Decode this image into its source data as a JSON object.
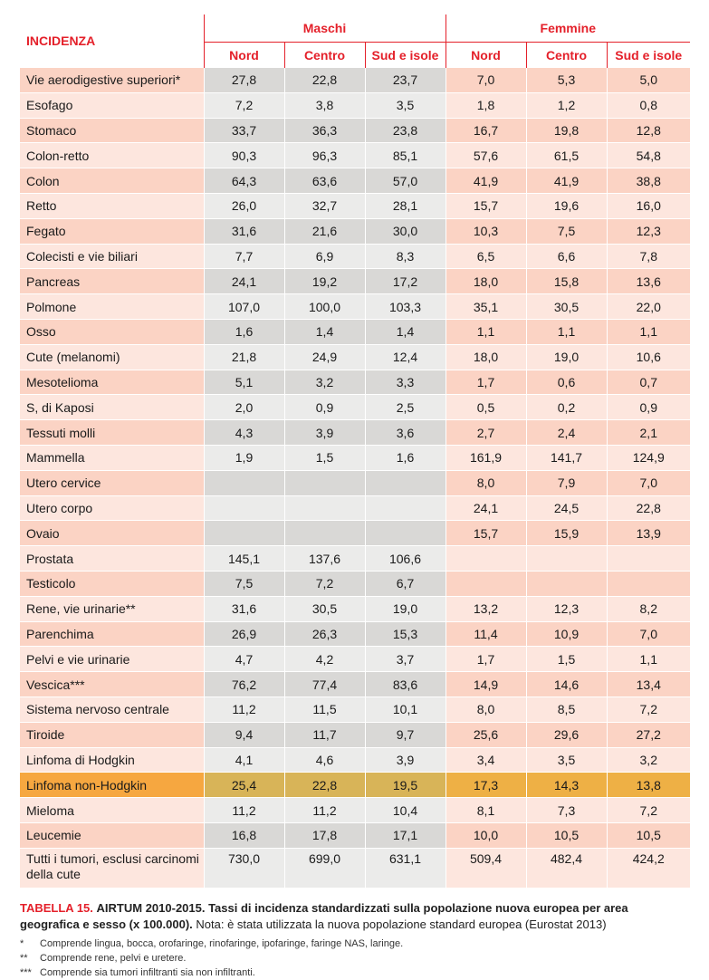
{
  "table": {
    "title": "INCIDENZA",
    "groups": [
      "Maschi",
      "Femmine"
    ],
    "subheaders": [
      "Nord",
      "Centro",
      "Sud e isole",
      "Nord",
      "Centro",
      "Sud e isole"
    ],
    "rows": [
      {
        "label": "Vie aerodigestive superiori*",
        "values": [
          "27,8",
          "22,8",
          "23,7",
          "7,0",
          "5,3",
          "5,0"
        ]
      },
      {
        "label": "Esofago",
        "values": [
          "7,2",
          "3,8",
          "3,5",
          "1,8",
          "1,2",
          "0,8"
        ]
      },
      {
        "label": "Stomaco",
        "values": [
          "33,7",
          "36,3",
          "23,8",
          "16,7",
          "19,8",
          "12,8"
        ]
      },
      {
        "label": "Colon-retto",
        "values": [
          "90,3",
          "96,3",
          "85,1",
          "57,6",
          "61,5",
          "54,8"
        ]
      },
      {
        "label": "Colon",
        "values": [
          "64,3",
          "63,6",
          "57,0",
          "41,9",
          "41,9",
          "38,8"
        ]
      },
      {
        "label": "Retto",
        "values": [
          "26,0",
          "32,7",
          "28,1",
          "15,7",
          "19,6",
          "16,0"
        ]
      },
      {
        "label": "Fegato",
        "values": [
          "31,6",
          "21,6",
          "30,0",
          "10,3",
          "7,5",
          "12,3"
        ]
      },
      {
        "label": "Colecisti e vie biliari",
        "values": [
          "7,7",
          "6,9",
          "8,3",
          "6,5",
          "6,6",
          "7,8"
        ]
      },
      {
        "label": "Pancreas",
        "values": [
          "24,1",
          "19,2",
          "17,2",
          "18,0",
          "15,8",
          "13,6"
        ]
      },
      {
        "label": "Polmone",
        "values": [
          "107,0",
          "100,0",
          "103,3",
          "35,1",
          "30,5",
          "22,0"
        ]
      },
      {
        "label": "Osso",
        "values": [
          "1,6",
          "1,4",
          "1,4",
          "1,1",
          "1,1",
          "1,1"
        ]
      },
      {
        "label": "Cute (melanomi)",
        "values": [
          "21,8",
          "24,9",
          "12,4",
          "18,0",
          "19,0",
          "10,6"
        ]
      },
      {
        "label": "Mesotelioma",
        "values": [
          "5,1",
          "3,2",
          "3,3",
          "1,7",
          "0,6",
          "0,7"
        ]
      },
      {
        "label": "S, di Kaposi",
        "values": [
          "2,0",
          "0,9",
          "2,5",
          "0,5",
          "0,2",
          "0,9"
        ]
      },
      {
        "label": "Tessuti molli",
        "values": [
          "4,3",
          "3,9",
          "3,6",
          "2,7",
          "2,4",
          "2,1"
        ]
      },
      {
        "label": "Mammella",
        "values": [
          "1,9",
          "1,5",
          "1,6",
          "161,9",
          "141,7",
          "124,9"
        ]
      },
      {
        "label": "Utero cervice",
        "values": [
          "",
          "",
          "",
          "8,0",
          "7,9",
          "7,0"
        ]
      },
      {
        "label": "Utero corpo",
        "values": [
          "",
          "",
          "",
          "24,1",
          "24,5",
          "22,8"
        ]
      },
      {
        "label": "Ovaio",
        "values": [
          "",
          "",
          "",
          "15,7",
          "15,9",
          "13,9"
        ]
      },
      {
        "label": "Prostata",
        "values": [
          "145,1",
          "137,6",
          "106,6",
          "",
          "",
          ""
        ]
      },
      {
        "label": "Testicolo",
        "values": [
          "7,5",
          "7,2",
          "6,7",
          "",
          "",
          ""
        ]
      },
      {
        "label": "Rene, vie urinarie**",
        "values": [
          "31,6",
          "30,5",
          "19,0",
          "13,2",
          "12,3",
          "8,2"
        ]
      },
      {
        "label": "Parenchima",
        "values": [
          "26,9",
          "26,3",
          "15,3",
          "11,4",
          "10,9",
          "7,0"
        ]
      },
      {
        "label": "Pelvi e vie urinarie",
        "values": [
          "4,7",
          "4,2",
          "3,7",
          "1,7",
          "1,5",
          "1,1"
        ]
      },
      {
        "label": "Vescica***",
        "values": [
          "76,2",
          "77,4",
          "83,6",
          "14,9",
          "14,6",
          "13,4"
        ]
      },
      {
        "label": "Sistema nervoso centrale",
        "values": [
          "11,2",
          "11,5",
          "10,1",
          "8,0",
          "8,5",
          "7,2"
        ]
      },
      {
        "label": "Tiroide",
        "values": [
          "9,4",
          "11,7",
          "9,7",
          "25,6",
          "29,6",
          "27,2"
        ]
      },
      {
        "label": "Linfoma di Hodgkin",
        "values": [
          "4,1",
          "4,6",
          "3,9",
          "3,4",
          "3,5",
          "3,2"
        ]
      },
      {
        "label": "Linfoma non-Hodgkin",
        "values": [
          "25,4",
          "22,8",
          "19,5",
          "17,3",
          "14,3",
          "13,8"
        ],
        "highlighted": true
      },
      {
        "label": "Mieloma",
        "values": [
          "11,2",
          "11,2",
          "10,4",
          "8,1",
          "7,3",
          "7,2"
        ]
      },
      {
        "label": "Leucemie",
        "values": [
          "16,8",
          "17,8",
          "17,1",
          "10,0",
          "10,5",
          "10,5"
        ]
      },
      {
        "label": "Tutti i tumori, esclusi carcinomi della cute",
        "values": [
          "730,0",
          "699,0",
          "631,1",
          "509,4",
          "482,4",
          "424,2"
        ]
      }
    ]
  },
  "caption": {
    "number": "TABELLA 15.",
    "bold": "AIRTUM 2010-2015. Tassi di incidenza standardizzati sulla popolazione nuova europea per area geografica e sesso (x 100.000).",
    "note": "Nota: è stata utilizzata la nuova popolazione standard europea (Eurostat 2013)"
  },
  "footnotes": [
    {
      "marker": "*",
      "text": "Comprende lingua, bocca, orofaringe, rinofaringe, ipofaringe, faringe NAS, laringe."
    },
    {
      "marker": "**",
      "text": "Comprende rene, pelvi e uretere."
    },
    {
      "marker": "***",
      "text": "Comprende sia tumori infiltranti sia non infiltranti."
    }
  ],
  "colors": {
    "accent": "#e4202a",
    "row_dark": "#fbd3c4",
    "row_light": "#fde6de",
    "male_dark": "#d9d8d6",
    "male_light": "#ebebea",
    "highlight": "#f6a740"
  }
}
